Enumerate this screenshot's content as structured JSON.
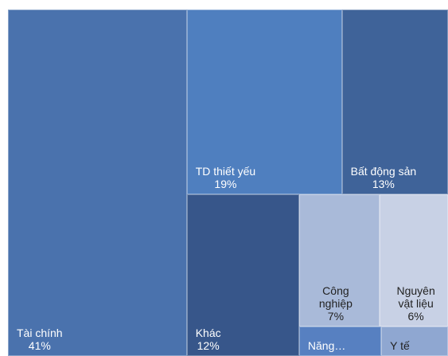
{
  "chart_data": {
    "type": "treemap",
    "categories": [
      "Tài chính",
      "TD thiết yếu",
      "Bất động sản",
      "Khác",
      "Công nghiệp",
      "Nguyên vật liệu",
      "Năng…",
      "Y tế"
    ],
    "values": [
      41,
      19,
      13,
      12,
      7,
      6,
      1.6,
      1.3
    ],
    "value_labels": [
      "41%",
      "19%",
      "13%",
      "12%",
      "7%",
      "6%",
      null,
      null
    ],
    "colors": [
      "#4a72ad",
      "#4f7fbf",
      "#3f6399",
      "#37568a",
      "#a9bad9",
      "#c8d1e5",
      "#5780c1",
      "#8fa7d1"
    ]
  }
}
